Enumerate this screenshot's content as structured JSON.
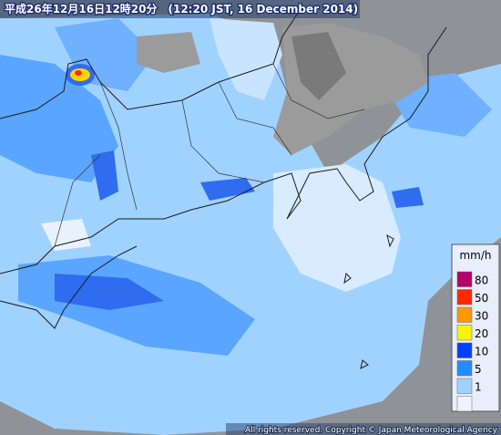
{
  "header": {
    "title": "平成26年12月16日12時20分　(12:20 JST, 16 December 2014)"
  },
  "legend": {
    "unit": "mm/h",
    "items": [
      {
        "label": "80",
        "color": "#b40068"
      },
      {
        "label": "50",
        "color": "#ff2800"
      },
      {
        "label": "30",
        "color": "#ff9900"
      },
      {
        "label": "20",
        "color": "#faf500"
      },
      {
        "label": "10",
        "color": "#0041ff"
      },
      {
        "label": "5",
        "color": "#218cff"
      },
      {
        "label": "1",
        "color": "#a0d2ff"
      },
      {
        "label": null,
        "color": "#f2f2ff"
      }
    ]
  },
  "footer": {
    "copyright": "All rights reserved. Copyright © Japan Meteorological Agency"
  }
}
